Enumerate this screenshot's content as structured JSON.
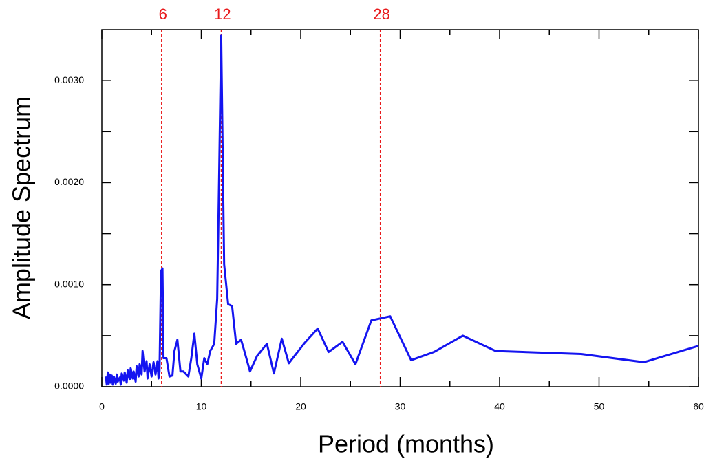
{
  "chart_data": {
    "type": "line",
    "xlabel": "Period (months)",
    "ylabel": "Amplitude Spectrum",
    "color": "#1414f0",
    "x": [
      0.4,
      0.5,
      0.6,
      0.7,
      0.8,
      0.9,
      1.0,
      1.1,
      1.2,
      1.4,
      1.5,
      1.6,
      1.8,
      1.9,
      2.0,
      2.2,
      2.3,
      2.5,
      2.6,
      2.8,
      2.9,
      3.1,
      3.2,
      3.4,
      3.5,
      3.7,
      3.8,
      4.0,
      4.1,
      4.3,
      4.5,
      4.6,
      4.8,
      5.0,
      5.2,
      5.4,
      5.6,
      5.7,
      5.8,
      5.95,
      6.1,
      6.2,
      6.5,
      6.8,
      7.1,
      7.3,
      7.6,
      7.9,
      8.2,
      8.7,
      9.0,
      9.3,
      9.6,
      10.0,
      10.3,
      10.6,
      10.9,
      11.3,
      11.6,
      11.8,
      12.0,
      12.3,
      12.7,
      13.1,
      13.5,
      14.0,
      14.3,
      14.9,
      15.6,
      16.6,
      17.3,
      18.1,
      18.8,
      20.4,
      21.7,
      22.8,
      24.2,
      25.5,
      27.1,
      29.0,
      31.1,
      33.4,
      36.3,
      39.6,
      48.2,
      54.5,
      60
    ],
    "values": [
      0.0001,
      2e-05,
      0.00014,
      3e-05,
      0.00012,
      4e-05,
      0.00011,
      2e-05,
      0.0001,
      3e-05,
      0.00012,
      5e-05,
      9e-05,
      2e-05,
      0.00013,
      6e-05,
      0.00014,
      4e-05,
      0.00016,
      7e-05,
      0.00018,
      8e-05,
      0.00015,
      5e-05,
      0.0002,
      0.0001,
      0.00022,
      0.00012,
      0.00035,
      0.00015,
      0.00025,
      8e-05,
      0.00022,
      0.0001,
      0.00024,
      0.00012,
      0.00025,
      8e-05,
      0.00015,
      0.00113,
      0.00116,
      0.00028,
      0.00028,
      0.0001,
      0.00011,
      0.00035,
      0.00046,
      0.00015,
      0.00015,
      0.0001,
      0.00028,
      0.00052,
      0.00022,
      8e-05,
      0.00028,
      0.00022,
      0.00035,
      0.00042,
      0.00086,
      0.0021,
      0.00344,
      0.0012,
      0.00081,
      0.00079,
      0.00042,
      0.00046,
      0.00036,
      0.00015,
      0.0003,
      0.00042,
      0.00013,
      0.00047,
      0.00023,
      0.00043,
      0.00057,
      0.00034,
      0.00044,
      0.00022,
      0.00065,
      0.00069,
      0.00026,
      0.00034,
      0.0005,
      0.00035,
      0.00032,
      0.00024,
      0.0004
    ],
    "xlim": [
      0,
      60
    ],
    "ylim": [
      0,
      0.0035
    ],
    "xticks": [
      0,
      10,
      20,
      30,
      40,
      50,
      60
    ],
    "xminor_ticks": [
      5,
      15,
      25,
      35,
      45,
      55
    ],
    "yticks": [
      {
        "value": 0,
        "label": "0.0000"
      },
      {
        "value": 0.001,
        "label": "0.0010"
      },
      {
        "value": 0.002,
        "label": "0.0020"
      },
      {
        "value": 0.003,
        "label": "0.0030"
      }
    ],
    "yminor_ticks": [
      0.0005,
      0.0015,
      0.0025
    ],
    "reference_lines": [
      6,
      12,
      28
    ],
    "reference_color": "#e8191b"
  }
}
